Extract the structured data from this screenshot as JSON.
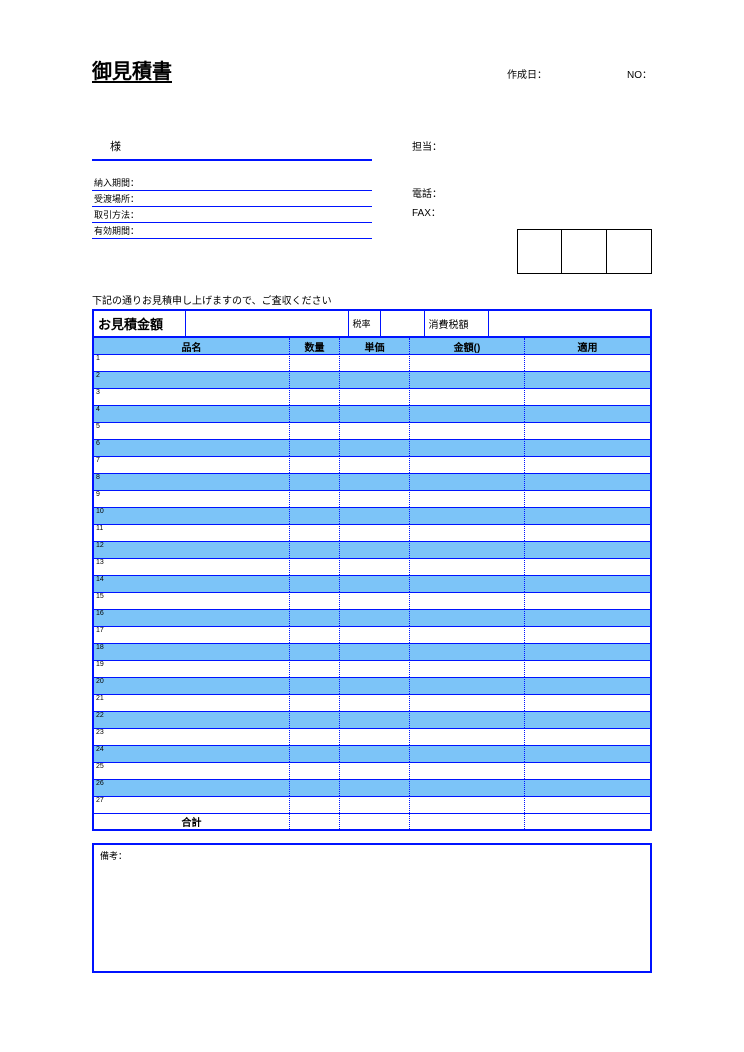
{
  "title": "御見積書",
  "header": {
    "date_label": "作成日：",
    "no_label": "NO：",
    "date": "",
    "no": ""
  },
  "client": {
    "suffix": "様"
  },
  "left_fields": {
    "delivery_period": {
      "label": "納入期間：",
      "value": ""
    },
    "delivery_place": {
      "label": "受渡場所：",
      "value": ""
    },
    "payment": {
      "label": "取引方法：",
      "value": ""
    },
    "validity": {
      "label": "有効期間：",
      "value": ""
    }
  },
  "right_fields": {
    "tantou": {
      "label": "担当：",
      "value": ""
    },
    "tel": {
      "label": "電話：",
      "value": ""
    },
    "fax": {
      "label": "FAX：",
      "value": ""
    }
  },
  "intro": "下記の通りお見積申し上げますので、ご査収ください",
  "totals": {
    "amount_label": "お見積金額",
    "amount": "",
    "rate_label": "税率",
    "rate": "",
    "tax_label": "消費税額",
    "tax": ""
  },
  "table": {
    "headers": {
      "name": "品名",
      "qty": "数量",
      "price": "単価",
      "amt": "金額()",
      "note": "適用"
    },
    "row_count": 27,
    "total_label": "合計",
    "colors": {
      "header_bg": "#7cc4f8",
      "alt_bg": "#7cc4f8",
      "border": "#0013ff"
    }
  },
  "remarks": {
    "label": "備考：",
    "value": ""
  }
}
